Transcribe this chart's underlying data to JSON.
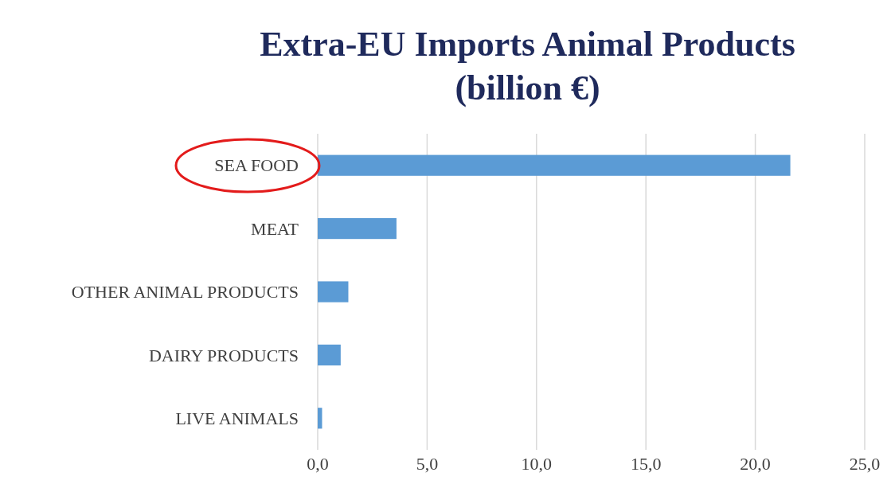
{
  "chart_data": {
    "type": "bar",
    "orientation": "horizontal",
    "title": "Extra-EU Imports Animal Products\n(billion €)",
    "categories": [
      "SEA FOOD",
      "MEAT",
      "OTHER ANIMAL PRODUCTS",
      "DAIRY PRODUCTS",
      "LIVE ANIMALS"
    ],
    "values": [
      21.6,
      3.6,
      1.4,
      1.05,
      0.2
    ],
    "color": "#5b9bd5",
    "xlim": [
      0,
      25
    ],
    "xticks": [
      {
        "value": 0,
        "label": "0,0"
      },
      {
        "value": 5,
        "label": "5,0"
      },
      {
        "value": 10,
        "label": "10,0"
      },
      {
        "value": 15,
        "label": "15,0"
      },
      {
        "value": 20,
        "label": "20,0"
      },
      {
        "value": 25,
        "label": "25,0"
      }
    ],
    "grid": "x"
  }
}
